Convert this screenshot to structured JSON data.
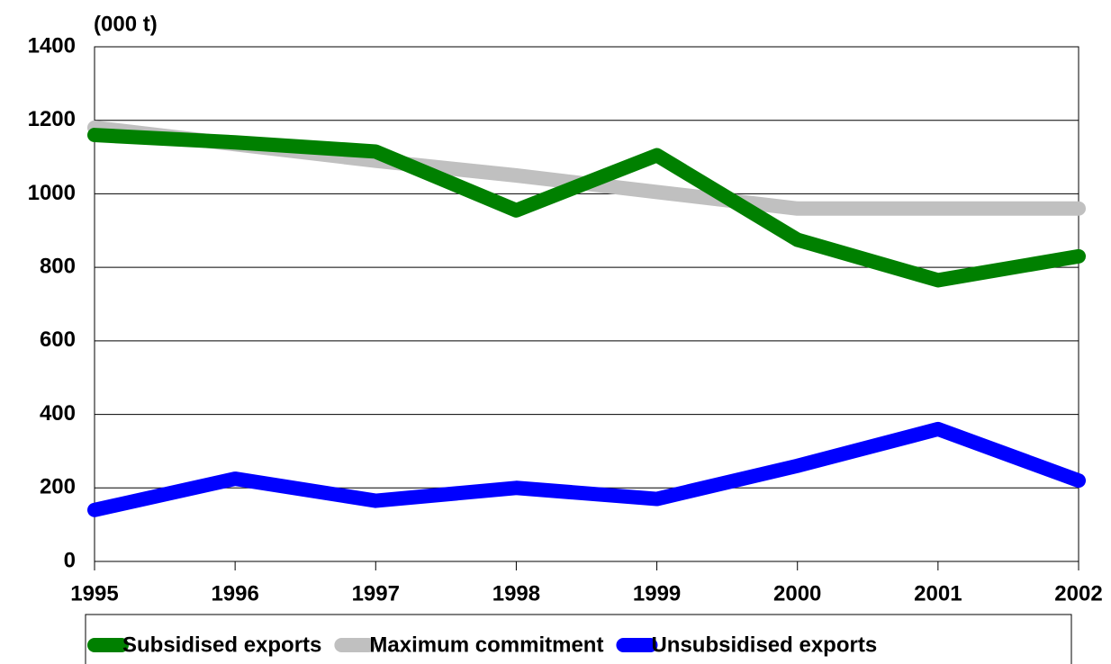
{
  "chart_data": {
    "type": "line",
    "y_label": "(000 t)",
    "x": [
      1995,
      1996,
      1997,
      1998,
      1999,
      2000,
      2001,
      2002
    ],
    "xlim": [
      1995,
      2002
    ],
    "xticks": [
      1995,
      1996,
      1997,
      1998,
      1999,
      2000,
      2001,
      2002
    ],
    "ylim": [
      0,
      1400
    ],
    "yticks": [
      0,
      200,
      400,
      600,
      800,
      1000,
      1200,
      1400
    ],
    "grid": true,
    "legend": "bottom",
    "series": [
      {
        "name": "Subsidised exports",
        "color": "#008000",
        "values": [
          1160,
          1140,
          1115,
          955,
          1105,
          875,
          765,
          830
        ]
      },
      {
        "name": "Maximum commitment",
        "color": "#c0c0c0",
        "values": [
          1180,
          1135,
          1090,
          1050,
          1005,
          960,
          960,
          960
        ]
      },
      {
        "name": "Unsubsidised exports",
        "color": "#0000ff",
        "values": [
          140,
          225,
          165,
          200,
          170,
          260,
          360,
          220
        ]
      }
    ]
  }
}
